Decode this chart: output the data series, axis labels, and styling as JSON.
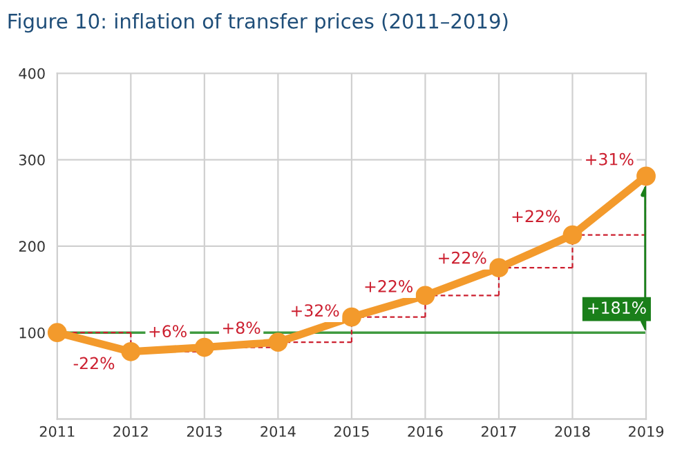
{
  "chart_data": {
    "type": "line",
    "title": "Figure 10: inflation of transfer prices (2011–2019)",
    "x": [
      2011,
      2012,
      2013,
      2014,
      2015,
      2016,
      2017,
      2018,
      2019
    ],
    "series": [
      {
        "color": "#f39a2c",
        "values": [
          100,
          78,
          83,
          89,
          118,
          143,
          175,
          213,
          281
        ]
      }
    ],
    "xlim": [
      2011,
      2019
    ],
    "xticks": [
      2011,
      2012,
      2013,
      2014,
      2015,
      2016,
      2017,
      2018,
      2019
    ],
    "ylim": [
      0,
      400
    ],
    "yticks": [
      {
        "value": 0,
        "label": null
      },
      100,
      200,
      300,
      400
    ],
    "grid": true,
    "marker": "circle",
    "line_style": "solid",
    "ref_lines": [
      {
        "axis": "y",
        "value": 100,
        "color": "#3f9a3f"
      }
    ],
    "annotations": [
      {
        "text": "-22%",
        "x": 2011.5,
        "y": 63
      },
      {
        "text": "+6%",
        "x": 2012.5,
        "y": 100
      },
      {
        "text": "+8%",
        "x": 2013.5,
        "y": 104
      },
      {
        "text": "+32%",
        "x": 2014.5,
        "y": 124
      },
      {
        "text": "+22%",
        "x": 2015.5,
        "y": 152
      },
      {
        "text": "+22%",
        "x": 2016.5,
        "y": 185
      },
      {
        "text": "+22%",
        "x": 2017.5,
        "y": 233
      },
      {
        "text": "+31%",
        "x": 2018.5,
        "y": 299
      },
      "+181%"
    ]
  }
}
